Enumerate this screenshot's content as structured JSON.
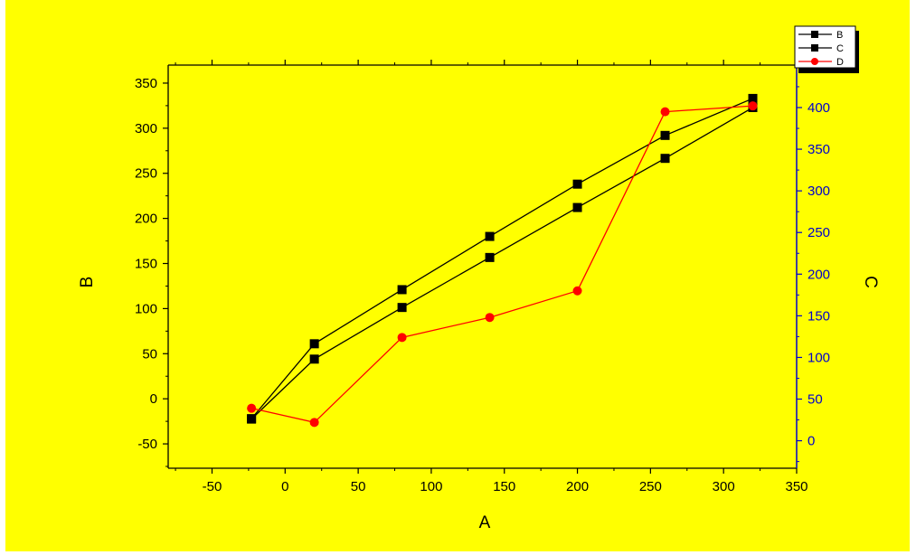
{
  "colors": {
    "background": "#ffff00",
    "outer_margin": "#ffffff",
    "left_axis": "#000000",
    "right_axis": "#0000cc",
    "series_B": "#000000",
    "series_C": "#000000",
    "series_D": "#ff0000"
  },
  "chart_data": {
    "type": "line",
    "title": "",
    "xlabel": "A",
    "ylabel": "B",
    "y2label": "C",
    "xlim": [
      -80,
      350
    ],
    "ylim": [
      -77,
      370
    ],
    "y2lim": [
      -33,
      451
    ],
    "x_ticks": [
      -50,
      0,
      50,
      100,
      150,
      200,
      250,
      300,
      350
    ],
    "y_ticks": [
      -50,
      0,
      50,
      100,
      150,
      200,
      250,
      300,
      350
    ],
    "y2_ticks": [
      0,
      50,
      100,
      150,
      200,
      250,
      300,
      350,
      400,
      450
    ],
    "grid": false,
    "legend_position": "top-right",
    "series": [
      {
        "name": "B",
        "axis": "left",
        "marker": "square",
        "x": [
          -23,
          20,
          80,
          140,
          200,
          260,
          320
        ],
        "y": [
          -22,
          61,
          121,
          180,
          238,
          292,
          333
        ]
      },
      {
        "name": "C",
        "axis": "right",
        "marker": "square",
        "x": [
          -23,
          20,
          80,
          140,
          200,
          260,
          320
        ],
        "y": [
          26,
          98,
          160,
          220,
          280,
          339,
          400
        ]
      },
      {
        "name": "D",
        "axis": "right",
        "marker": "circle",
        "x": [
          -23,
          20,
          80,
          140,
          200,
          260,
          320
        ],
        "y": [
          39,
          22,
          124,
          148,
          180,
          395,
          402
        ]
      }
    ]
  }
}
